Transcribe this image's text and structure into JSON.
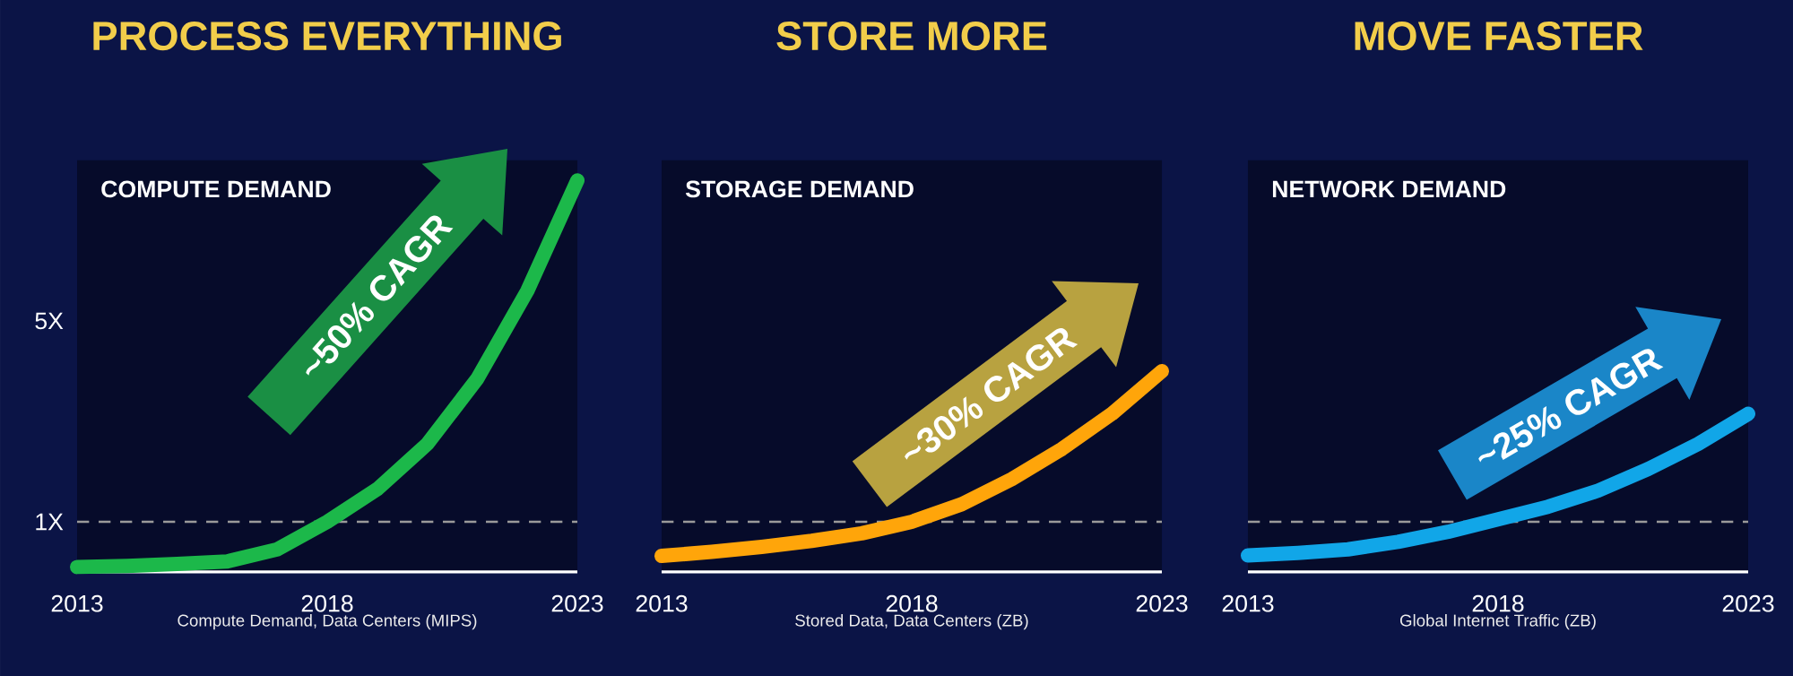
{
  "chart_data": [
    {
      "type": "line",
      "title": "PROCESS EVERYTHING",
      "subtitle": "COMPUTE DEMAND",
      "xlabel": "Compute Demand, Data Centers (MIPS)",
      "annotations": [
        "~50% CAGR"
      ],
      "x": [
        2013,
        2014,
        2015,
        2016,
        2017,
        2018,
        2019,
        2020,
        2021,
        2022,
        2023
      ],
      "series": [
        {
          "color": "#1cb84a",
          "values": [
            0.1,
            0.12,
            0.16,
            0.21,
            0.45,
            1.0,
            1.65,
            2.55,
            3.85,
            5.6,
            7.8
          ]
        }
      ],
      "xlim": [
        2013,
        2023
      ],
      "xticks": [
        2013,
        2018,
        2023
      ],
      "ylim": [
        0,
        8.2
      ],
      "yticks": [
        {
          "value": 1,
          "label": "1X"
        },
        {
          "value": 5,
          "label": "5X"
        }
      ],
      "ref_lines": [
        {
          "axis": "y",
          "value": 1,
          "color": "#9a9a9a",
          "line_style": "dashed"
        }
      ]
    },
    {
      "type": "line",
      "title": "STORE MORE",
      "subtitle": "STORAGE DEMAND",
      "xlabel": "Stored Data, Data Centers (ZB)",
      "annotations": [
        "~30% CAGR"
      ],
      "x": [
        2013,
        2014,
        2015,
        2016,
        2017,
        2018,
        2019,
        2020,
        2021,
        2022,
        2023
      ],
      "series": [
        {
          "color": "#ffa50a",
          "values": [
            0.32,
            0.4,
            0.5,
            0.62,
            0.77,
            1.0,
            1.35,
            1.85,
            2.45,
            3.15,
            4.0
          ]
        }
      ],
      "xlim": [
        2013,
        2023
      ],
      "xticks": [
        2013,
        2018,
        2023
      ],
      "ylim": [
        0,
        8.2
      ],
      "tick_labels": "x",
      "ref_lines": [
        {
          "axis": "y",
          "value": 1,
          "color": "#9a9a9a",
          "line_style": "dashed"
        }
      ]
    },
    {
      "type": "line",
      "title": "MOVE FASTER",
      "subtitle": "NETWORK DEMAND",
      "xlabel": "Global Internet Traffic (ZB)",
      "annotations": [
        "~25% CAGR"
      ],
      "x": [
        2013,
        2014,
        2015,
        2016,
        2017,
        2018,
        2019,
        2020,
        2021,
        2022,
        2023
      ],
      "series": [
        {
          "color": "#11a6e8",
          "values": [
            0.33,
            0.38,
            0.45,
            0.6,
            0.8,
            1.05,
            1.3,
            1.62,
            2.05,
            2.55,
            3.15
          ]
        }
      ],
      "xlim": [
        2013,
        2023
      ],
      "xticks": [
        2013,
        2018,
        2023
      ],
      "ylim": [
        0,
        8.2
      ],
      "tick_labels": "x",
      "ref_lines": [
        {
          "axis": "y",
          "value": 1,
          "color": "#9a9a9a",
          "line_style": "dashed"
        }
      ]
    }
  ]
}
